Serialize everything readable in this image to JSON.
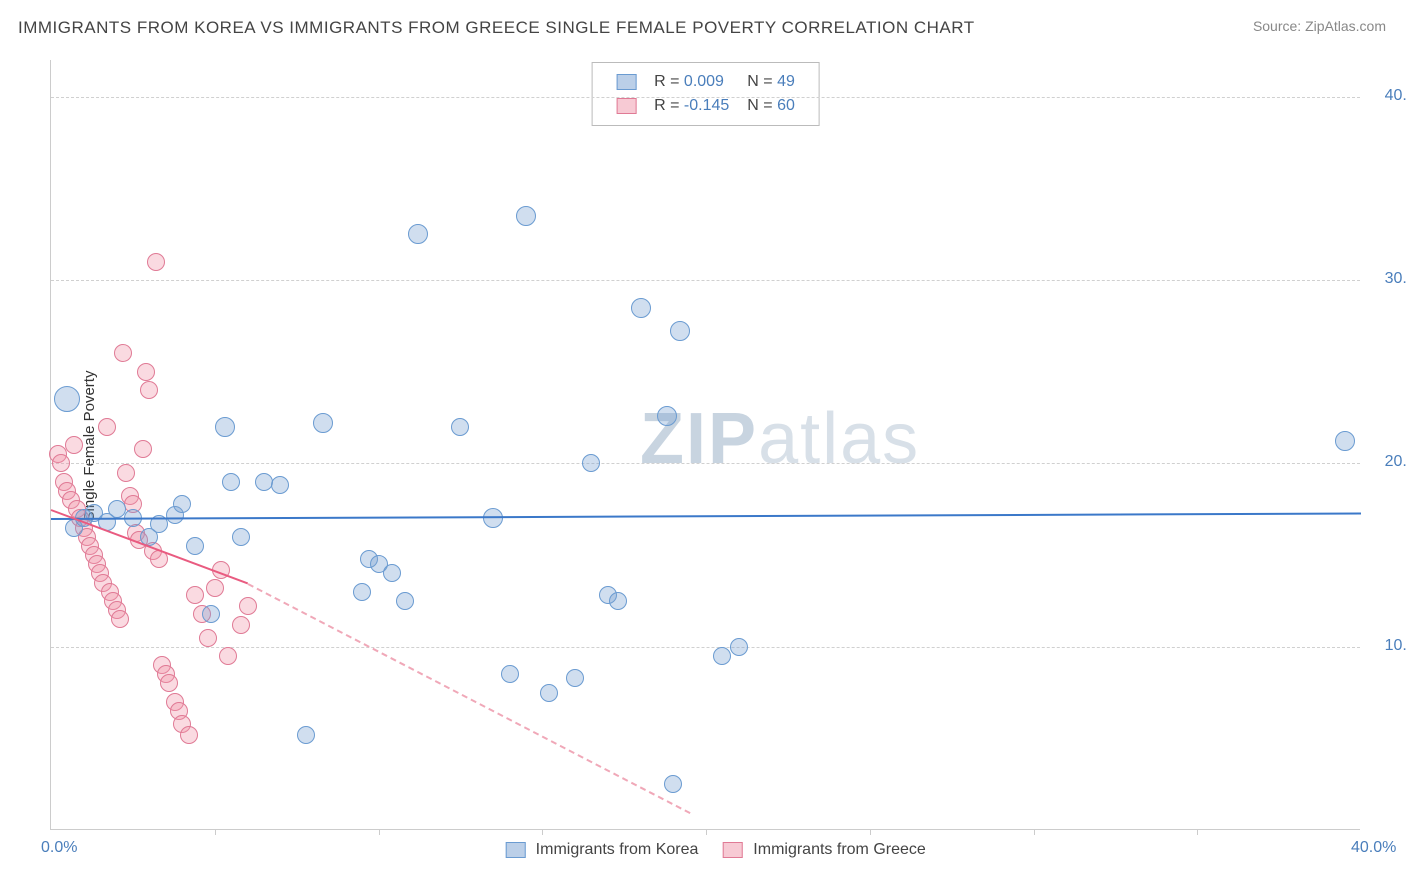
{
  "title": "IMMIGRANTS FROM KOREA VS IMMIGRANTS FROM GREECE SINGLE FEMALE POVERTY CORRELATION CHART",
  "source": "Source: ZipAtlas.com",
  "ylabel": "Single Female Poverty",
  "watermark_a": "ZIP",
  "watermark_b": "atlas",
  "chart": {
    "type": "scatter",
    "xlim": [
      0,
      40
    ],
    "ylim": [
      0,
      42
    ],
    "yticks": [
      10,
      20,
      30,
      40
    ],
    "ytick_labels": [
      "10.0%",
      "20.0%",
      "30.0%",
      "40.0%"
    ],
    "xtick_marks": [
      5,
      10,
      15,
      20,
      25,
      30,
      35
    ],
    "xlabels": [
      {
        "x": 0,
        "text": "0.0%"
      },
      {
        "x": 40,
        "text": "40.0%"
      }
    ],
    "colors": {
      "blue_fill": "rgba(120,160,210,0.35)",
      "blue_stroke": "#6a9bd1",
      "pink_fill": "rgba(240,150,170,0.35)",
      "pink_stroke": "#e07a95",
      "trend_blue": "#3b78c9",
      "trend_pink": "#e95b80",
      "grid": "#d0d0d0",
      "axis": "#cccccc",
      "tick_text": "#4a7ebb",
      "bg": "#ffffff"
    },
    "marker_base_size": 18,
    "series_blue": {
      "name": "Immigrants from Korea",
      "R": "0.009",
      "N": "49",
      "trend": {
        "x1": 0,
        "y1": 17.0,
        "x2": 40,
        "y2": 17.3
      },
      "points": [
        [
          0.5,
          23.5,
          26
        ],
        [
          0.7,
          16.5,
          18
        ],
        [
          1.0,
          17.0,
          18
        ],
        [
          1.3,
          17.3,
          18
        ],
        [
          1.7,
          16.8,
          18
        ],
        [
          2.0,
          17.5,
          18
        ],
        [
          2.5,
          17.0,
          18
        ],
        [
          3.0,
          16.0,
          18
        ],
        [
          3.3,
          16.7,
          18
        ],
        [
          3.8,
          17.2,
          18
        ],
        [
          4.0,
          17.8,
          18
        ],
        [
          4.4,
          15.5,
          18
        ],
        [
          4.9,
          11.8,
          18
        ],
        [
          5.3,
          22.0,
          20
        ],
        [
          5.5,
          19.0,
          18
        ],
        [
          5.8,
          16.0,
          18
        ],
        [
          6.5,
          19.0,
          18
        ],
        [
          7.0,
          18.8,
          18
        ],
        [
          7.8,
          5.2,
          18
        ],
        [
          8.3,
          22.2,
          20
        ],
        [
          9.5,
          13.0,
          18
        ],
        [
          9.7,
          14.8,
          18
        ],
        [
          10.0,
          14.5,
          18
        ],
        [
          10.4,
          14.0,
          18
        ],
        [
          10.8,
          12.5,
          18
        ],
        [
          11.2,
          32.5,
          20
        ],
        [
          12.5,
          22.0,
          18
        ],
        [
          13.5,
          17.0,
          20
        ],
        [
          14.0,
          8.5,
          18
        ],
        [
          14.5,
          33.5,
          20
        ],
        [
          15.2,
          7.5,
          18
        ],
        [
          16.0,
          8.3,
          18
        ],
        [
          16.5,
          20.0,
          18
        ],
        [
          17.0,
          12.8,
          18
        ],
        [
          17.3,
          12.5,
          18
        ],
        [
          18.0,
          28.5,
          20
        ],
        [
          18.8,
          22.6,
          20
        ],
        [
          19.0,
          2.5,
          18
        ],
        [
          19.2,
          27.2,
          20
        ],
        [
          20.5,
          9.5,
          18
        ],
        [
          21.0,
          10.0,
          18
        ],
        [
          39.5,
          21.2,
          20
        ]
      ]
    },
    "series_pink": {
      "name": "Immigrants from Greece",
      "R": "-0.145",
      "N": "60",
      "trend_solid": {
        "x1": 0,
        "y1": 17.5,
        "x2": 6.0,
        "y2": 13.5
      },
      "trend_dash": {
        "x1": 6.0,
        "y1": 13.5,
        "x2": 19.5,
        "y2": 1.0
      },
      "points": [
        [
          0.2,
          20.5,
          18
        ],
        [
          0.3,
          20.0,
          18
        ],
        [
          0.4,
          19.0,
          18
        ],
        [
          0.5,
          18.5,
          18
        ],
        [
          0.6,
          18.0,
          18
        ],
        [
          0.7,
          21.0,
          18
        ],
        [
          0.8,
          17.5,
          18
        ],
        [
          0.9,
          17.0,
          18
        ],
        [
          1.0,
          16.5,
          18
        ],
        [
          1.1,
          16.0,
          18
        ],
        [
          1.2,
          15.5,
          18
        ],
        [
          1.3,
          15.0,
          18
        ],
        [
          1.4,
          14.5,
          18
        ],
        [
          1.5,
          14.0,
          18
        ],
        [
          1.6,
          13.5,
          18
        ],
        [
          1.7,
          22.0,
          18
        ],
        [
          1.8,
          13.0,
          18
        ],
        [
          1.9,
          12.5,
          18
        ],
        [
          2.0,
          12.0,
          18
        ],
        [
          2.1,
          11.5,
          18
        ],
        [
          2.2,
          26.0,
          18
        ],
        [
          2.3,
          19.5,
          18
        ],
        [
          2.4,
          18.2,
          18
        ],
        [
          2.5,
          17.8,
          18
        ],
        [
          2.6,
          16.2,
          18
        ],
        [
          2.7,
          15.8,
          18
        ],
        [
          2.8,
          20.8,
          18
        ],
        [
          2.9,
          25.0,
          18
        ],
        [
          3.0,
          24.0,
          18
        ],
        [
          3.1,
          15.2,
          18
        ],
        [
          3.2,
          31.0,
          18
        ],
        [
          3.3,
          14.8,
          18
        ],
        [
          3.4,
          9.0,
          18
        ],
        [
          3.5,
          8.5,
          18
        ],
        [
          3.6,
          8.0,
          18
        ],
        [
          3.8,
          7.0,
          18
        ],
        [
          3.9,
          6.5,
          18
        ],
        [
          4.0,
          5.8,
          18
        ],
        [
          4.2,
          5.2,
          18
        ],
        [
          4.4,
          12.8,
          18
        ],
        [
          4.6,
          11.8,
          18
        ],
        [
          4.8,
          10.5,
          18
        ],
        [
          5.0,
          13.2,
          18
        ],
        [
          5.2,
          14.2,
          18
        ],
        [
          5.4,
          9.5,
          18
        ],
        [
          5.8,
          11.2,
          18
        ],
        [
          6.0,
          12.2,
          18
        ]
      ]
    }
  },
  "legend_bottom": [
    {
      "swatch": "blue",
      "label": "Immigrants from Korea"
    },
    {
      "swatch": "pink",
      "label": "Immigrants from Greece"
    }
  ]
}
